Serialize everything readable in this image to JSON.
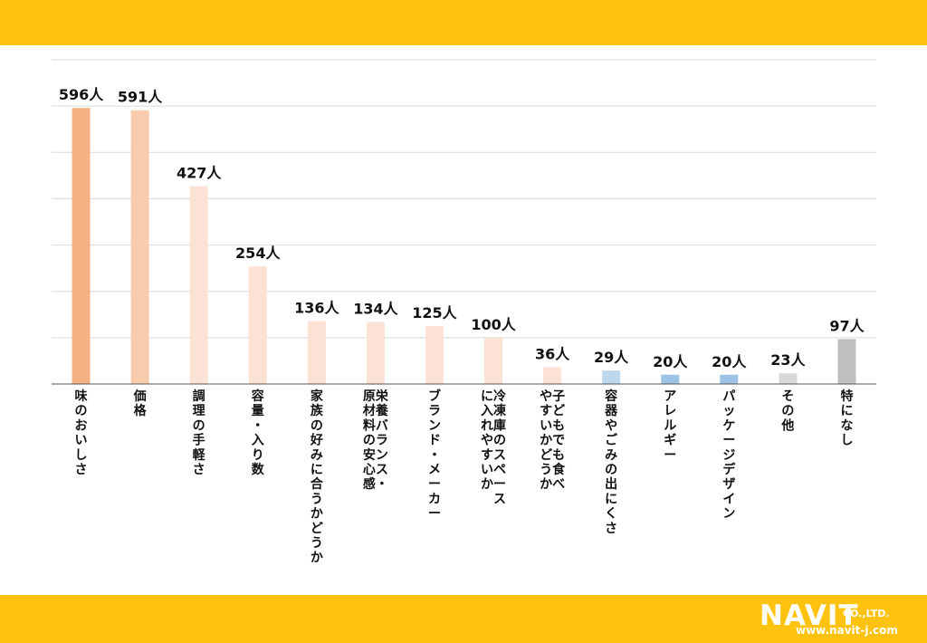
{
  "colors": {
    "band": "#ffc20e",
    "grid": "#d9d9d9",
    "axis": "#555555"
  },
  "chart_data": {
    "type": "bar",
    "title": "",
    "xlabel": "",
    "ylabel": "",
    "ylim": [
      0,
      700
    ],
    "grid": true,
    "unit": "人",
    "categories": [
      "味のおいしさ",
      "価格",
      "調理の手軽さ",
      "容量・入り数",
      "家族の好みに合うかどうか",
      "栄養バランス・原材料の安心感",
      "ブランド・メーカー",
      "冷凍庫のスペースに入れやすいか",
      "子どもでも食べやすいかどうか",
      "容器やごみの出にくさ",
      "アレルギー",
      "パッケージデザイン",
      "その他",
      "特になし"
    ],
    "values": [
      596,
      591,
      427,
      254,
      136,
      134,
      125,
      100,
      36,
      29,
      20,
      20,
      23,
      97
    ],
    "value_labels": [
      "596人",
      "591人",
      "427人",
      "254人",
      "136人",
      "134人",
      "125人",
      "100人",
      "36人",
      "29人",
      "20人",
      "20人",
      "23人",
      "97人"
    ],
    "bar_colors": [
      "#f4b183",
      "#f8cbad",
      "#fbe2d5",
      "#fbe2d5",
      "#fbe2d5",
      "#fbe2d5",
      "#fbe2d5",
      "#fbe2d5",
      "#fbe2d5",
      "#bdd7ee",
      "#9dc3e6",
      "#9dc3e6",
      "#d9d9d9",
      "#bfbfbf"
    ]
  },
  "logo": {
    "name": "NAVIT",
    "suffix": "CO.,LTD.",
    "url": "www.navit-j.com"
  }
}
